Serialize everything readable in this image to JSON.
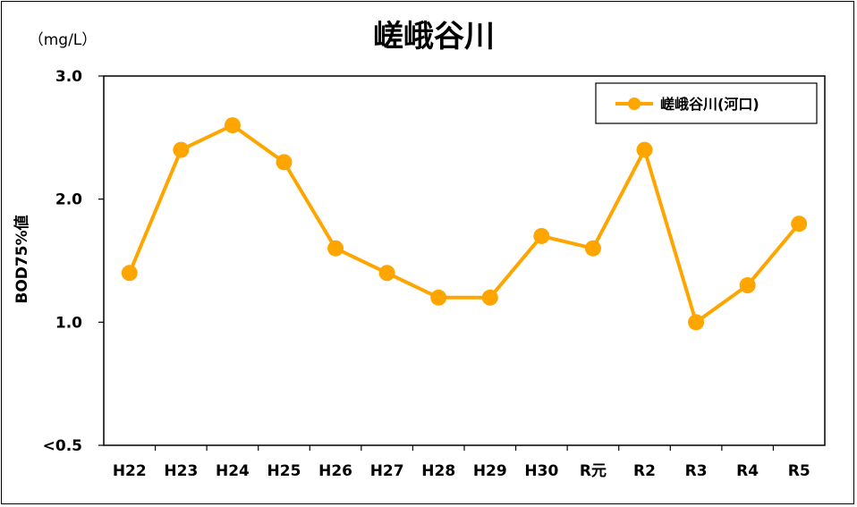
{
  "chart_data": {
    "type": "line",
    "title": "嵯峨谷川",
    "unit_label": "（mg/L）",
    "ylabel": "BOD75%値",
    "xlabel": "",
    "categories": [
      "H22",
      "H23",
      "H24",
      "H25",
      "H26",
      "H27",
      "H28",
      "H29",
      "H30",
      "R元",
      "R2",
      "R3",
      "R4",
      "R5"
    ],
    "series": [
      {
        "name": "嵯峨谷川(河口)",
        "color": "#FFA500",
        "values": [
          1.4,
          2.4,
          2.6,
          2.3,
          1.6,
          1.4,
          1.2,
          1.2,
          1.7,
          1.6,
          2.4,
          1.0,
          1.3,
          1.8
        ]
      }
    ],
    "ylim": [
      0,
      3.0
    ],
    "yticks": [
      {
        "value": 0,
        "label": "<0.5"
      },
      {
        "value": 1.0,
        "label": "1.0"
      },
      {
        "value": 2.0,
        "label": "2.0"
      },
      {
        "value": 3.0,
        "label": "3.0"
      }
    ],
    "grid": false,
    "legend_position": "top-right"
  }
}
